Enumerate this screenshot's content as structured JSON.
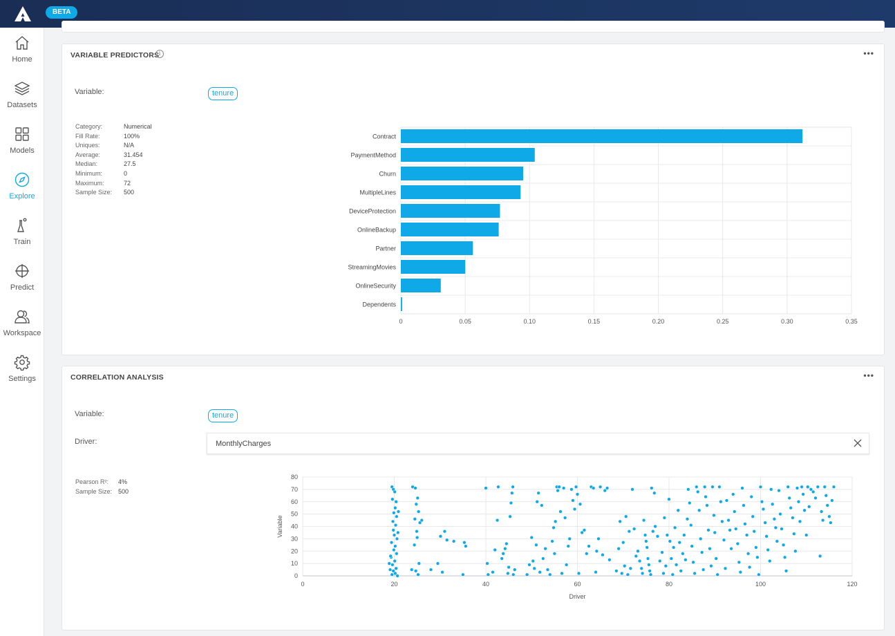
{
  "header": {
    "beta_label": "BETA"
  },
  "sidebar": {
    "items": [
      {
        "label": "Home",
        "icon": "home-icon"
      },
      {
        "label": "Datasets",
        "icon": "layers-icon"
      },
      {
        "label": "Models",
        "icon": "grid-icon"
      },
      {
        "label": "Explore",
        "icon": "compass-icon",
        "active": true
      },
      {
        "label": "Train",
        "icon": "flask-icon"
      },
      {
        "label": "Predict",
        "icon": "crosshair-icon"
      },
      {
        "label": "Workspace",
        "icon": "users-icon"
      },
      {
        "label": "Settings",
        "icon": "gear-icon"
      }
    ]
  },
  "colors": {
    "accent": "#10a9e8",
    "topbar": "#1a2e55"
  },
  "variable_predictors": {
    "title": "VARIABLE PREDICTORS",
    "variable_label": "Variable:",
    "variable_value": "tenure",
    "stats": [
      {
        "key": "Category:",
        "value": "Numerical"
      },
      {
        "key": "Fill Rate:",
        "value": "100%"
      },
      {
        "key": "Uniques:",
        "value": "N/A"
      },
      {
        "key": "Average:",
        "value": "31.454"
      },
      {
        "key": "Median:",
        "value": "27.5"
      },
      {
        "key": "Minimum:",
        "value": "0"
      },
      {
        "key": "Maximum:",
        "value": "72"
      },
      {
        "key": "Sample Size:",
        "value": "500"
      }
    ]
  },
  "correlation_analysis": {
    "title": "CORRELATION ANALYSIS",
    "variable_label": "Variable:",
    "variable_value": "tenure",
    "driver_label": "Driver:",
    "driver_value": "MonthlyCharges",
    "stats": [
      {
        "key": "Pearson R²:",
        "value": "4%"
      },
      {
        "key": "Sample Size:",
        "value": "500"
      }
    ]
  },
  "chart_data": [
    {
      "type": "bar",
      "orientation": "horizontal",
      "categories": [
        "Contract",
        "PaymentMethod",
        "Churn",
        "MultipleLines",
        "DeviceProtection",
        "OnlineBackup",
        "Partner",
        "StreamingMovies",
        "OnlineSecurity",
        "Dependents"
      ],
      "values": [
        0.312,
        0.104,
        0.095,
        0.093,
        0.077,
        0.076,
        0.056,
        0.05,
        0.031,
        0.001
      ],
      "xlim": [
        0,
        0.35
      ],
      "xticks": [
        "0",
        "0.05",
        "0.10",
        "0.15",
        "0.20",
        "0.25",
        "0.30",
        "0.35"
      ],
      "grid": true,
      "color": "#10a9e8"
    },
    {
      "type": "scatter",
      "xlabel": "Driver",
      "ylabel": "Variable",
      "xlim": [
        0,
        120
      ],
      "ylim": [
        0,
        80
      ],
      "xticks": [
        "0",
        "20",
        "40",
        "60",
        "80",
        "100",
        "120"
      ],
      "yticks": [
        "0",
        "10",
        "20",
        "30",
        "40",
        "50",
        "60",
        "70",
        "80"
      ],
      "grid": true,
      "color": "#10a9e8",
      "points": [
        [
          19.5,
          72
        ],
        [
          19.8,
          70
        ],
        [
          20.1,
          68
        ],
        [
          19.6,
          62
        ],
        [
          20.4,
          60
        ],
        [
          20.2,
          55
        ],
        [
          19.9,
          51
        ],
        [
          20.5,
          48
        ],
        [
          19.7,
          44
        ],
        [
          20.3,
          41
        ],
        [
          19.8,
          37
        ],
        [
          20.0,
          33
        ],
        [
          20.6,
          30
        ],
        [
          19.4,
          27
        ],
        [
          20.2,
          24
        ],
        [
          19.9,
          21
        ],
        [
          20.5,
          18
        ],
        [
          19.3,
          15
        ],
        [
          20.1,
          12
        ],
        [
          19.6,
          9
        ],
        [
          20.4,
          6
        ],
        [
          19.8,
          4
        ],
        [
          20.2,
          2
        ],
        [
          19.5,
          1
        ],
        [
          20.7,
          0
        ],
        [
          19.2,
          16
        ],
        [
          20.8,
          35
        ],
        [
          19.1,
          5
        ],
        [
          20.9,
          52
        ],
        [
          18.9,
          10
        ],
        [
          24.0,
          72
        ],
        [
          24.6,
          71
        ],
        [
          25.1,
          63
        ],
        [
          24.8,
          58
        ],
        [
          25.3,
          52
        ],
        [
          24.5,
          46
        ],
        [
          25.6,
          43
        ],
        [
          24.9,
          36
        ],
        [
          25.0,
          31
        ],
        [
          24.4,
          25
        ],
        [
          25.4,
          10
        ],
        [
          24.7,
          4
        ],
        [
          25.2,
          1
        ],
        [
          26.0,
          45
        ],
        [
          23.8,
          5
        ],
        [
          28.0,
          5
        ],
        [
          29.5,
          10
        ],
        [
          30.1,
          32
        ],
        [
          30.5,
          3
        ],
        [
          31.0,
          36
        ],
        [
          31.5,
          29
        ],
        [
          33.0,
          28
        ],
        [
          35.0,
          1
        ],
        [
          35.3,
          27
        ],
        [
          35.6,
          24
        ],
        [
          40.0,
          71
        ],
        [
          40.3,
          10
        ],
        [
          40.5,
          1
        ],
        [
          41.5,
          3
        ],
        [
          42.0,
          21
        ],
        [
          42.5,
          45
        ],
        [
          42.7,
          72
        ],
        [
          43.5,
          14
        ],
        [
          43.8,
          18
        ],
        [
          44.2,
          22
        ],
        [
          44.5,
          26
        ],
        [
          44.8,
          2
        ],
        [
          45.0,
          7
        ],
        [
          45.3,
          48
        ],
        [
          45.5,
          59
        ],
        [
          45.7,
          67
        ],
        [
          45.9,
          72
        ],
        [
          46.0,
          1
        ],
        [
          46.3,
          5
        ],
        [
          49.0,
          1
        ],
        [
          49.5,
          9
        ],
        [
          50.0,
          31
        ],
        [
          50.3,
          12
        ],
        [
          50.6,
          6
        ],
        [
          51.0,
          25
        ],
        [
          51.2,
          60
        ],
        [
          51.5,
          67
        ],
        [
          51.8,
          3
        ],
        [
          52.2,
          57
        ],
        [
          52.5,
          14
        ],
        [
          53.0,
          22
        ],
        [
          53.5,
          5
        ],
        [
          54.0,
          1
        ],
        [
          54.5,
          28
        ],
        [
          54.8,
          39
        ],
        [
          55.0,
          18
        ],
        [
          55.2,
          44
        ],
        [
          55.5,
          72
        ],
        [
          55.7,
          69
        ],
        [
          56.0,
          72
        ],
        [
          56.3,
          52
        ],
        [
          56.6,
          2
        ],
        [
          57.0,
          71
        ],
        [
          57.3,
          47
        ],
        [
          57.6,
          9
        ],
        [
          58.0,
          24
        ],
        [
          58.3,
          30
        ],
        [
          58.7,
          70
        ],
        [
          59.0,
          61
        ],
        [
          59.4,
          54
        ],
        [
          59.7,
          72
        ],
        [
          60.0,
          66
        ],
        [
          60.3,
          2
        ],
        [
          60.6,
          58
        ],
        [
          61.0,
          35
        ],
        [
          61.5,
          37
        ],
        [
          62.0,
          18
        ],
        [
          62.5,
          24
        ],
        [
          63.0,
          72
        ],
        [
          63.5,
          71
        ],
        [
          64.0,
          3
        ],
        [
          64.2,
          20
        ],
        [
          64.6,
          30
        ],
        [
          65.0,
          72
        ],
        [
          65.5,
          17
        ],
        [
          66.0,
          69
        ],
        [
          66.5,
          71
        ],
        [
          67.0,
          13
        ],
        [
          68.5,
          4
        ],
        [
          69.0,
          22
        ],
        [
          69.3,
          44
        ],
        [
          69.7,
          2
        ],
        [
          70.0,
          27
        ],
        [
          70.3,
          8
        ],
        [
          70.6,
          48
        ],
        [
          71.0,
          1
        ],
        [
          71.3,
          36
        ],
        [
          71.6,
          6
        ],
        [
          72.0,
          70
        ],
        [
          72.4,
          38
        ],
        [
          72.8,
          16
        ],
        [
          73.2,
          20
        ],
        [
          73.6,
          12
        ],
        [
          74.0,
          6
        ],
        [
          74.2,
          2
        ],
        [
          74.5,
          45
        ],
        [
          74.8,
          33
        ],
        [
          75.0,
          28
        ],
        [
          75.2,
          23
        ],
        [
          75.4,
          14
        ],
        [
          75.6,
          9
        ],
        [
          75.8,
          4
        ],
        [
          76.0,
          1
        ],
        [
          76.2,
          71
        ],
        [
          76.5,
          36
        ],
        [
          76.8,
          67
        ],
        [
          77.0,
          40
        ],
        [
          77.5,
          32
        ],
        [
          78.0,
          12
        ],
        [
          78.5,
          19
        ],
        [
          78.8,
          2
        ],
        [
          79.0,
          47
        ],
        [
          79.3,
          8
        ],
        [
          79.6,
          33
        ],
        [
          80.0,
          62
        ],
        [
          80.2,
          28
        ],
        [
          80.5,
          14
        ],
        [
          80.8,
          1
        ],
        [
          81.0,
          23
        ],
        [
          81.3,
          39
        ],
        [
          81.6,
          9
        ],
        [
          82.0,
          53
        ],
        [
          82.3,
          27
        ],
        [
          82.6,
          4
        ],
        [
          83.0,
          18
        ],
        [
          83.3,
          33
        ],
        [
          83.6,
          13
        ],
        [
          84.0,
          46
        ],
        [
          84.2,
          70
        ],
        [
          84.5,
          59
        ],
        [
          84.8,
          41
        ],
        [
          85.0,
          24
        ],
        [
          85.3,
          11
        ],
        [
          85.6,
          2
        ],
        [
          86.0,
          72
        ],
        [
          86.3,
          68
        ],
        [
          86.6,
          53
        ],
        [
          86.9,
          30
        ],
        [
          87.2,
          19
        ],
        [
          87.5,
          5
        ],
        [
          87.8,
          72
        ],
        [
          88.0,
          64
        ],
        [
          88.3,
          57
        ],
        [
          88.6,
          37
        ],
        [
          88.9,
          22
        ],
        [
          89.2,
          8
        ],
        [
          89.5,
          72
        ],
        [
          89.8,
          49
        ],
        [
          90.0,
          35
        ],
        [
          90.3,
          14
        ],
        [
          90.6,
          1
        ],
        [
          91.0,
          72
        ],
        [
          91.3,
          60
        ],
        [
          91.6,
          44
        ],
        [
          92.0,
          29
        ],
        [
          92.3,
          6
        ],
        [
          92.6,
          61
        ],
        [
          93.0,
          45
        ],
        [
          93.3,
          37
        ],
        [
          93.6,
          22
        ],
        [
          94.0,
          66
        ],
        [
          94.3,
          52
        ],
        [
          94.6,
          38
        ],
        [
          95.0,
          26
        ],
        [
          95.3,
          11
        ],
        [
          95.6,
          3
        ],
        [
          96.0,
          71
        ],
        [
          96.3,
          57
        ],
        [
          96.6,
          42
        ],
        [
          97.0,
          33
        ],
        [
          97.3,
          18
        ],
        [
          97.6,
          7
        ],
        [
          98.0,
          64
        ],
        [
          98.3,
          48
        ],
        [
          98.6,
          36
        ],
        [
          99.0,
          23
        ],
        [
          99.3,
          15
        ],
        [
          99.6,
          1
        ],
        [
          100.0,
          72
        ],
        [
          100.3,
          60
        ],
        [
          100.6,
          54
        ],
        [
          101.0,
          43
        ],
        [
          101.3,
          32
        ],
        [
          101.6,
          21
        ],
        [
          102.0,
          12
        ],
        [
          102.3,
          70
        ],
        [
          102.6,
          58
        ],
        [
          103.0,
          46
        ],
        [
          103.3,
          39
        ],
        [
          103.6,
          28
        ],
        [
          104.0,
          69
        ],
        [
          104.3,
          50
        ],
        [
          104.6,
          38
        ],
        [
          105.0,
          25
        ],
        [
          105.3,
          15
        ],
        [
          105.6,
          4
        ],
        [
          106.0,
          72
        ],
        [
          106.3,
          63
        ],
        [
          106.6,
          55
        ],
        [
          107.0,
          47
        ],
        [
          107.3,
          34
        ],
        [
          107.6,
          20
        ],
        [
          108.0,
          71
        ],
        [
          108.3,
          60
        ],
        [
          108.6,
          44
        ],
        [
          109.0,
          72
        ],
        [
          109.3,
          66
        ],
        [
          109.6,
          53
        ],
        [
          110.0,
          33
        ],
        [
          110.3,
          72
        ],
        [
          110.6,
          56
        ],
        [
          111.0,
          70
        ],
        [
          111.5,
          68
        ],
        [
          112.0,
          63
        ],
        [
          112.5,
          72
        ],
        [
          113.0,
          16
        ],
        [
          113.3,
          52
        ],
        [
          113.6,
          45
        ],
        [
          114.0,
          72
        ],
        [
          114.3,
          65
        ],
        [
          114.6,
          57
        ],
        [
          115.0,
          48
        ],
        [
          115.3,
          43
        ],
        [
          115.6,
          61
        ],
        [
          116.0,
          72
        ]
      ]
    }
  ]
}
